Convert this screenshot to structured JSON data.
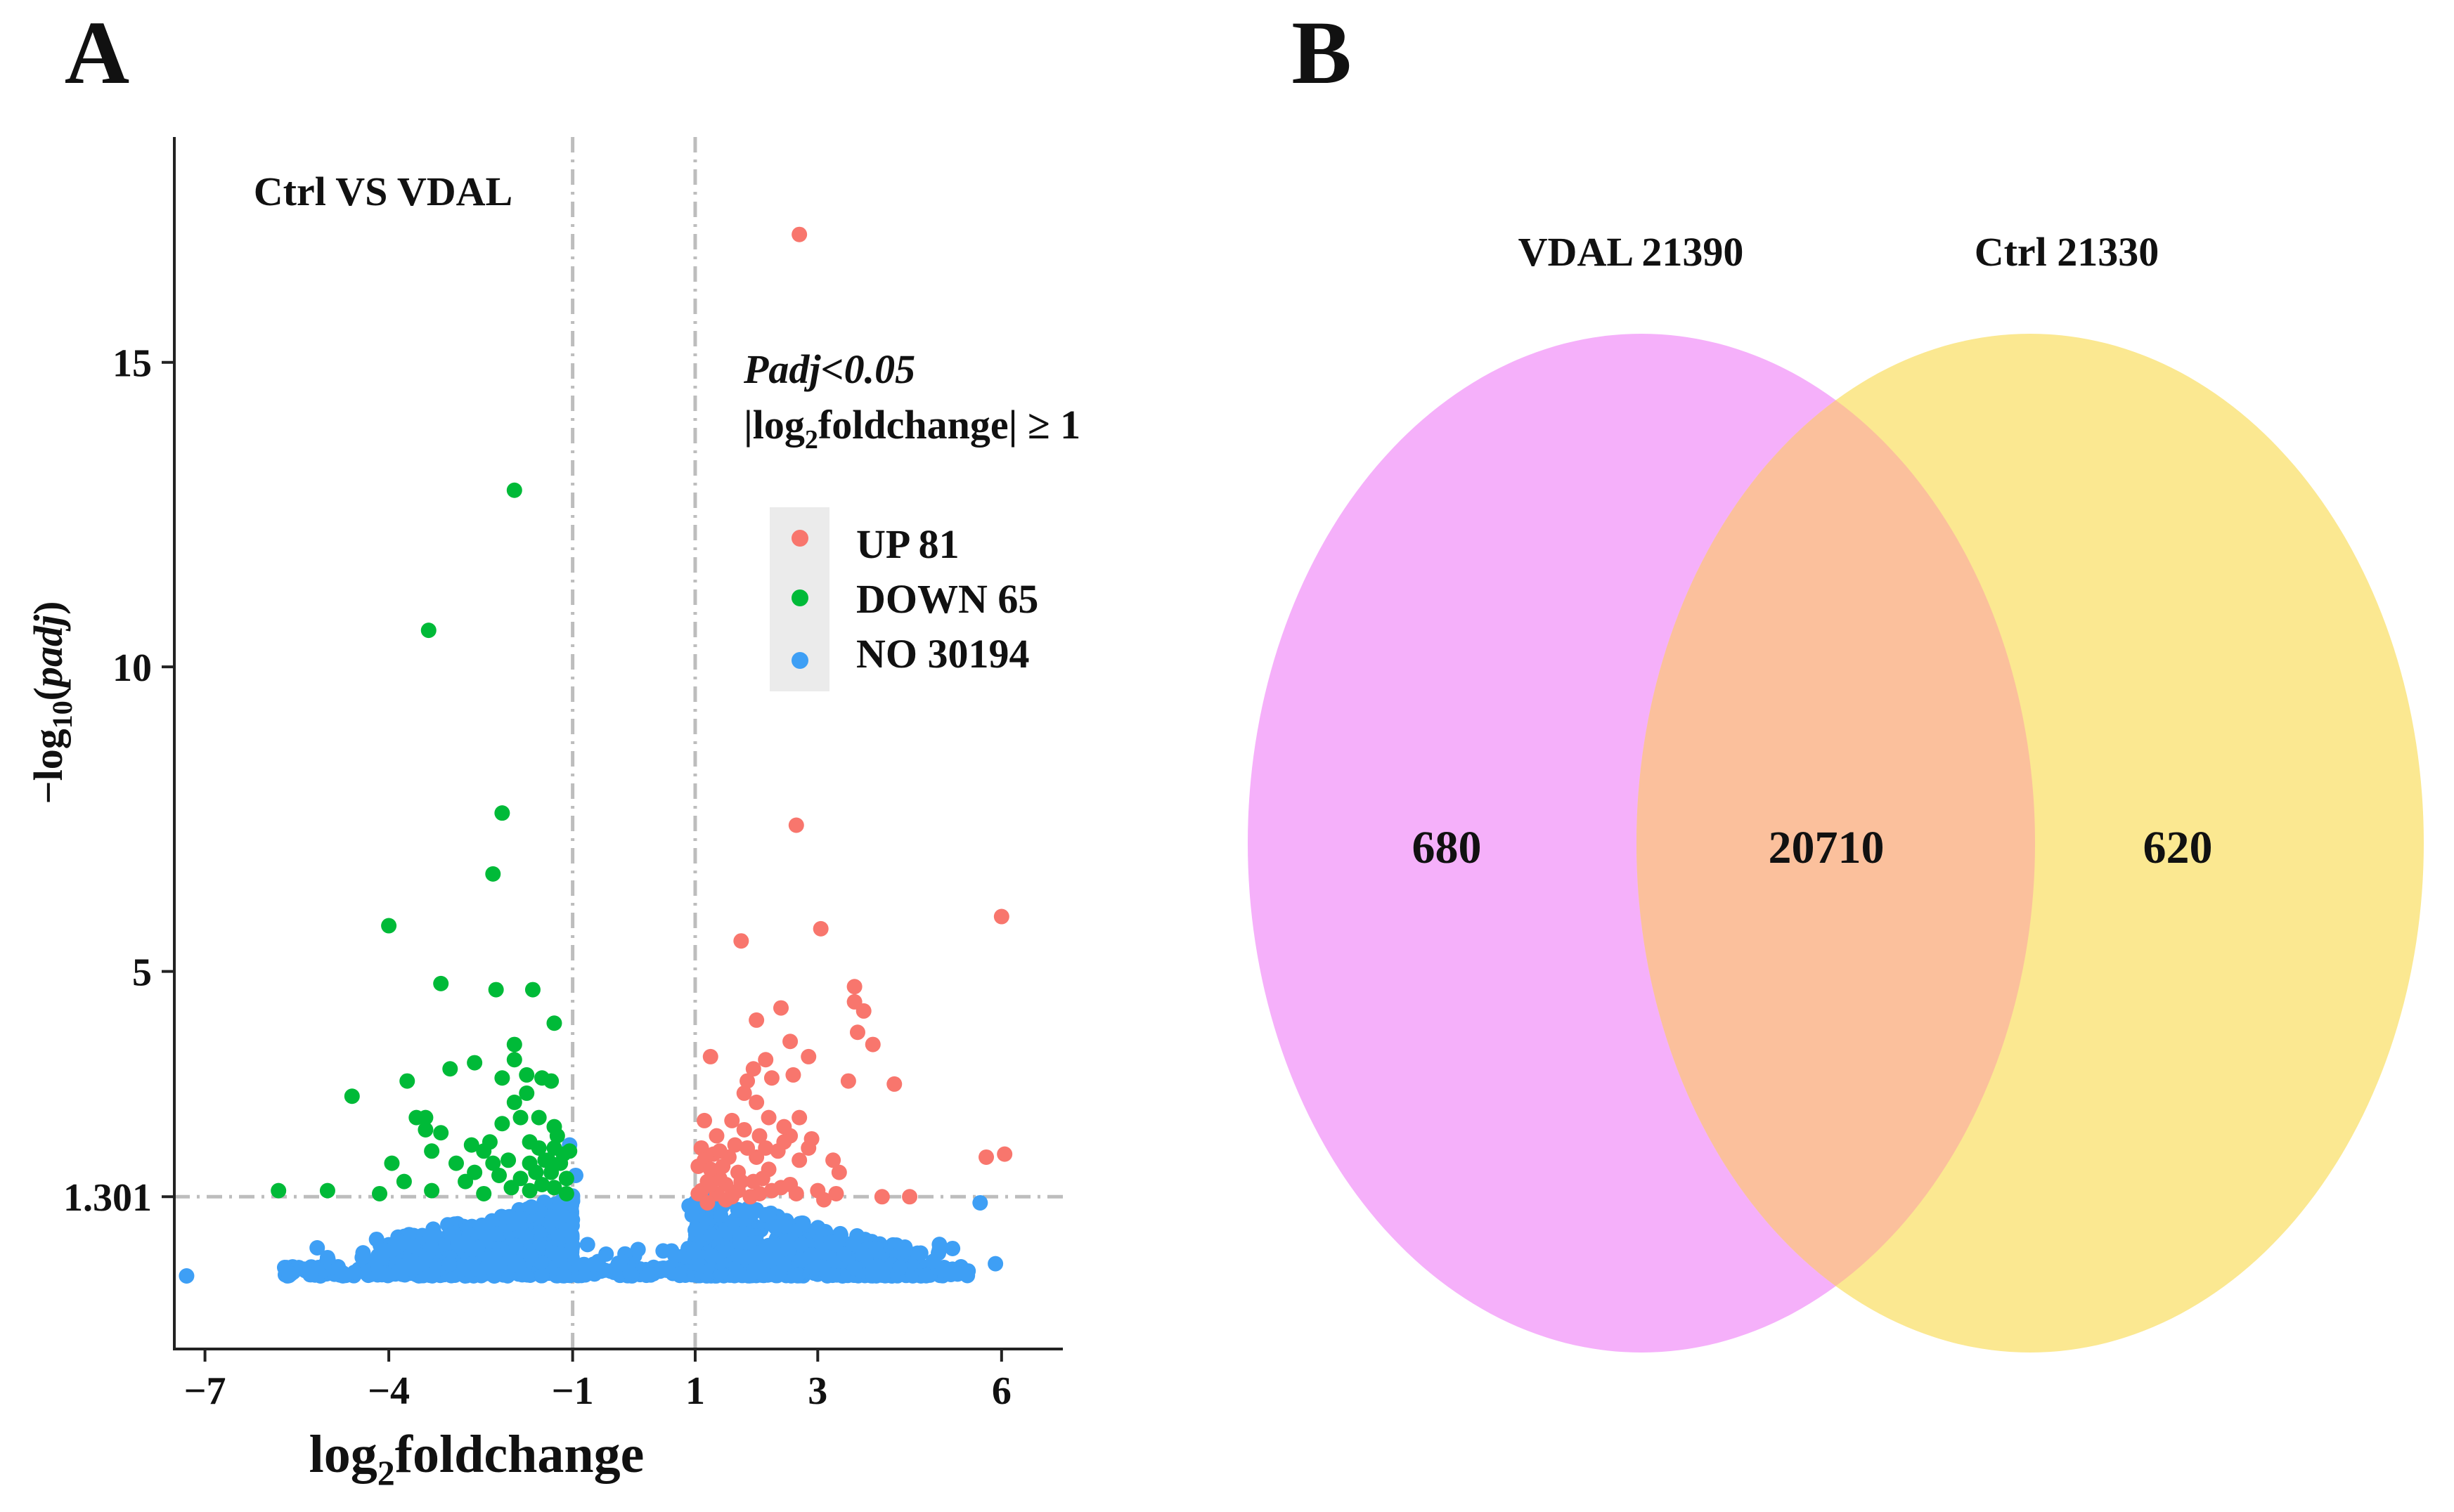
{
  "panel_a": {
    "label": "A",
    "annotation": "Ctrl VS VDAL",
    "threshold_line1": "Padj<0.05",
    "threshold_line2_pre": "|log",
    "threshold_line2_sub": "2",
    "threshold_line2_post": "foldchange| ≥ 1",
    "xlabel_pre": "log",
    "xlabel_sub": "2",
    "xlabel_post": "foldchange",
    "ylabel_pre": "−log",
    "ylabel_sub": "10",
    "ylabel_paren_open": "(",
    "ylabel_post": "padj",
    "ylabel_paren_close": ")",
    "legend": [
      {
        "label": "UP 81",
        "color": "#F8766D"
      },
      {
        "label": "DOWN 65",
        "color": "#00BA38"
      },
      {
        "label": "NO 30194",
        "color": "#3E9FF5"
      }
    ]
  },
  "panel_b": {
    "label": "B",
    "set_left_label": "VDAL 21390",
    "set_right_label": "Ctrl 21330",
    "only_left": "680",
    "intersection": "20710",
    "only_right": "620",
    "colors": {
      "left": "#F5B0FA",
      "right": "#FBE891",
      "overlap": "#FBC09C"
    }
  },
  "chart_data": [
    {
      "type": "scatter",
      "title": "Ctrl VS VDAL",
      "xlabel": "log2foldchange",
      "ylabel": "-log10(padj)",
      "xlim": [
        -7.5,
        7
      ],
      "ylim": [
        -1.2,
        18.7
      ],
      "xticks": [
        -7,
        -4,
        -1,
        1,
        3,
        6
      ],
      "xtick_labels": [
        "−7",
        "−4",
        "−1",
        "1",
        "3",
        "6"
      ],
      "yticks": [
        1.301,
        5,
        10,
        15
      ],
      "ytick_labels": [
        "1.301",
        "5",
        "10",
        "15"
      ],
      "thresholds": {
        "x": [
          -1,
          1
        ],
        "y": 1.301
      },
      "series": [
        {
          "name": "UP 81",
          "color": "#F8766D",
          "points": [
            [
              2.7,
              17.1
            ],
            [
              2.65,
              7.4
            ],
            [
              3.05,
              5.7
            ],
            [
              6.0,
              5.9
            ],
            [
              1.75,
              5.5
            ],
            [
              3.6,
              4.75
            ],
            [
              3.6,
              4.5
            ],
            [
              2.4,
              4.4
            ],
            [
              3.75,
              4.35
            ],
            [
              2.0,
              4.2
            ],
            [
              3.65,
              4.0
            ],
            [
              2.55,
              3.85
            ],
            [
              3.9,
              3.8
            ],
            [
              1.25,
              3.6
            ],
            [
              2.15,
              3.55
            ],
            [
              2.85,
              3.6
            ],
            [
              1.95,
              3.4
            ],
            [
              2.6,
              3.3
            ],
            [
              1.85,
              3.2
            ],
            [
              2.25,
              3.25
            ],
            [
              3.5,
              3.2
            ],
            [
              1.8,
              3.0
            ],
            [
              4.25,
              3.15
            ],
            [
              2.0,
              2.85
            ],
            [
              1.15,
              2.55
            ],
            [
              2.7,
              2.6
            ],
            [
              1.6,
              2.55
            ],
            [
              1.8,
              2.4
            ],
            [
              2.05,
              2.3
            ],
            [
              2.55,
              2.3
            ],
            [
              2.9,
              2.25
            ],
            [
              1.35,
              2.3
            ],
            [
              1.1,
              2.1
            ],
            [
              1.85,
              2.1
            ],
            [
              2.35,
              2.05
            ],
            [
              2.45,
              2.2
            ],
            [
              2.85,
              2.1
            ],
            [
              1.3,
              2.0
            ],
            [
              1.55,
              1.95
            ],
            [
              2.0,
              1.95
            ],
            [
              2.15,
              2.1
            ],
            [
              5.75,
              1.95
            ],
            [
              6.05,
              2.0
            ],
            [
              1.05,
              1.8
            ],
            [
              1.45,
              1.8
            ],
            [
              1.7,
              1.7
            ],
            [
              2.2,
              1.75
            ],
            [
              3.35,
              1.7
            ],
            [
              1.2,
              1.55
            ],
            [
              1.5,
              1.5
            ],
            [
              1.95,
              1.55
            ],
            [
              1.1,
              1.4
            ],
            [
              1.35,
              1.35
            ],
            [
              1.7,
              1.4
            ],
            [
              2.05,
              1.35
            ],
            [
              3.0,
              1.4
            ],
            [
              3.3,
              1.35
            ],
            [
              1.25,
              1.5
            ],
            [
              1.6,
              1.3
            ],
            [
              1.9,
              1.3
            ],
            [
              2.4,
              1.45
            ],
            [
              1.15,
              1.9
            ],
            [
              1.4,
              1.6
            ],
            [
              1.05,
              1.35
            ],
            [
              1.75,
              1.55
            ],
            [
              2.25,
              1.4
            ],
            [
              1.2,
              1.2
            ],
            [
              1.5,
              1.25
            ],
            [
              2.1,
              1.6
            ],
            [
              2.55,
              1.5
            ],
            [
              2.7,
              1.9
            ],
            [
              3.25,
              1.9
            ],
            [
              1.4,
              2.05
            ],
            [
              2.45,
              2.45
            ],
            [
              2.2,
              2.6
            ],
            [
              1.65,
              2.15
            ],
            [
              1.25,
              1.75
            ],
            [
              2.65,
              1.35
            ],
            [
              4.05,
              1.3
            ],
            [
              4.5,
              1.3
            ],
            [
              3.1,
              1.25
            ]
          ]
        },
        {
          "name": "DOWN 65",
          "color": "#00BA38",
          "points": [
            [
              -1.95,
              12.9
            ],
            [
              -3.35,
              10.6
            ],
            [
              -2.15,
              7.6
            ],
            [
              -2.3,
              6.6
            ],
            [
              -4.0,
              5.75
            ],
            [
              -3.15,
              4.8
            ],
            [
              -2.25,
              4.7
            ],
            [
              -1.65,
              4.7
            ],
            [
              -1.3,
              4.15
            ],
            [
              -1.95,
              3.8
            ],
            [
              -3.0,
              3.4
            ],
            [
              -2.6,
              3.5
            ],
            [
              -1.95,
              3.55
            ],
            [
              -1.75,
              3.3
            ],
            [
              -3.7,
              3.2
            ],
            [
              -2.15,
              3.25
            ],
            [
              -1.5,
              3.25
            ],
            [
              -1.35,
              3.2
            ],
            [
              -1.75,
              3.0
            ],
            [
              -4.6,
              2.95
            ],
            [
              -1.95,
              2.85
            ],
            [
              -3.55,
              2.6
            ],
            [
              -3.4,
              2.6
            ],
            [
              -1.85,
              2.6
            ],
            [
              -1.55,
              2.6
            ],
            [
              -3.4,
              2.4
            ],
            [
              -3.15,
              2.35
            ],
            [
              -2.15,
              2.5
            ],
            [
              -1.3,
              2.45
            ],
            [
              -1.25,
              2.3
            ],
            [
              -3.3,
              2.05
            ],
            [
              -2.65,
              2.15
            ],
            [
              -2.45,
              2.05
            ],
            [
              -2.35,
              2.2
            ],
            [
              -1.7,
              2.2
            ],
            [
              -1.55,
              2.1
            ],
            [
              -1.3,
              2.1
            ],
            [
              -1.15,
              2.0
            ],
            [
              -1.05,
              2.05
            ],
            [
              -3.95,
              1.85
            ],
            [
              -2.9,
              1.85
            ],
            [
              -2.3,
              1.85
            ],
            [
              -2.05,
              1.9
            ],
            [
              -1.7,
              1.85
            ],
            [
              -1.4,
              1.9
            ],
            [
              -1.2,
              1.85
            ],
            [
              -2.6,
              1.7
            ],
            [
              -2.2,
              1.65
            ],
            [
              -1.6,
              1.7
            ],
            [
              -1.35,
              1.7
            ],
            [
              -1.1,
              1.6
            ],
            [
              -1.85,
              1.6
            ],
            [
              -5.0,
              1.4
            ],
            [
              -5.8,
              1.4
            ],
            [
              -4.15,
              1.35
            ],
            [
              -3.3,
              1.4
            ],
            [
              -1.5,
              1.5
            ],
            [
              -2.0,
              1.45
            ],
            [
              -1.7,
              1.4
            ],
            [
              -1.3,
              1.45
            ],
            [
              -1.1,
              1.35
            ],
            [
              -2.75,
              1.55
            ],
            [
              -2.45,
              1.35
            ],
            [
              -3.75,
              1.55
            ],
            [
              -1.45,
              1.9
            ]
          ]
        }
      ],
      "no_series": {
        "name": "NO 30194",
        "color": "#3E9FF5",
        "count_label": "30194",
        "y_floor": 0.0
      }
    },
    {
      "type": "venn",
      "sets": [
        {
          "name": "VDAL",
          "size": 21390,
          "label": "VDAL 21390"
        },
        {
          "name": "Ctrl",
          "size": 21330,
          "label": "Ctrl 21330"
        }
      ],
      "regions": {
        "VDAL_only": 680,
        "intersection": 20710,
        "Ctrl_only": 620
      }
    }
  ]
}
